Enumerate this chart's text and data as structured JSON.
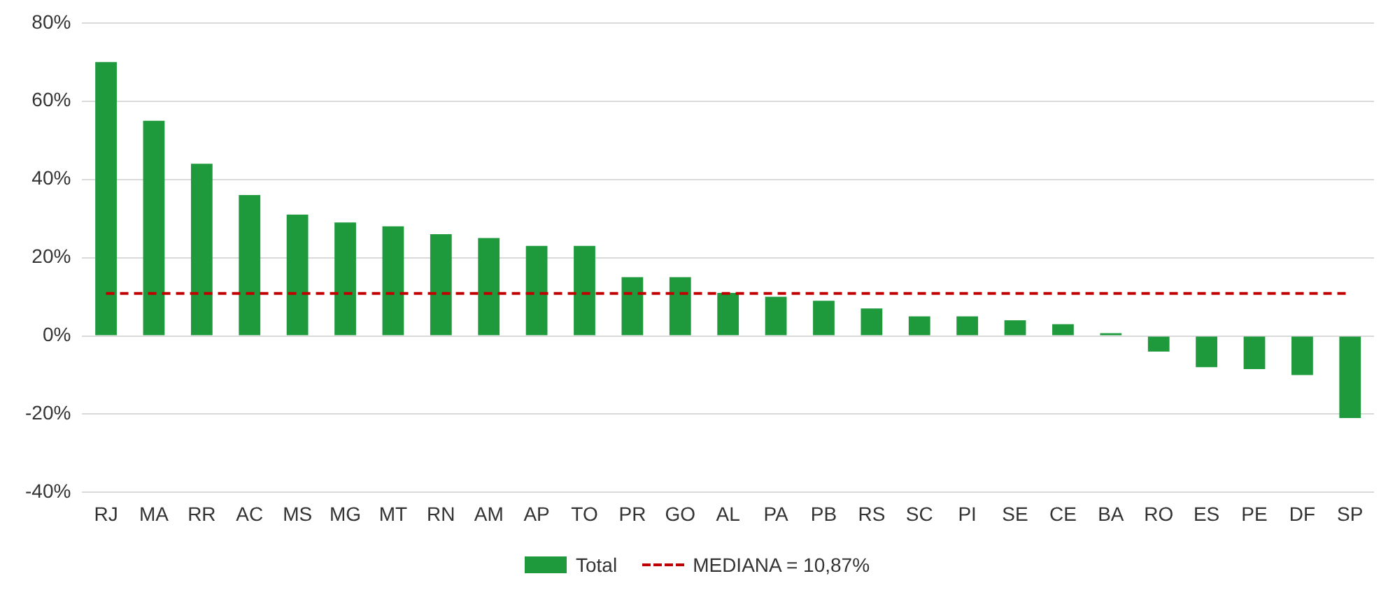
{
  "chart_data": {
    "type": "bar",
    "categories": [
      "RJ",
      "MA",
      "RR",
      "AC",
      "MS",
      "MG",
      "MT",
      "RN",
      "AM",
      "AP",
      "TO",
      "PR",
      "GO",
      "AL",
      "PA",
      "PB",
      "RS",
      "SC",
      "PI",
      "SE",
      "CE",
      "BA",
      "RO",
      "ES",
      "PE",
      "DF",
      "SP"
    ],
    "series": [
      {
        "name": "Total",
        "color": "#1e9a3c",
        "values": [
          70,
          55,
          44,
          36,
          31,
          29,
          28,
          26,
          25,
          23,
          23,
          15,
          15,
          11,
          10,
          9,
          7,
          5,
          5,
          4,
          3,
          0.7,
          -4,
          -8,
          -8.5,
          -10,
          -21
        ]
      }
    ],
    "ylim": [
      -40,
      80
    ],
    "yticks": [
      {
        "value": -40,
        "label": "-40%"
      },
      {
        "value": -20,
        "label": "-20%"
      },
      {
        "value": 0,
        "label": "0%"
      },
      {
        "value": 20,
        "label": "20%"
      },
      {
        "value": 40,
        "label": "40%"
      },
      {
        "value": 60,
        "label": "60%"
      },
      {
        "value": 80,
        "label": "80%"
      }
    ],
    "ref_lines": [
      {
        "axis": "y",
        "value": 10.87,
        "label": "MEDIANA = 10,87%",
        "color": "#c00000",
        "line_style": "dashed"
      }
    ],
    "grid": "y",
    "legend": "bottom"
  }
}
